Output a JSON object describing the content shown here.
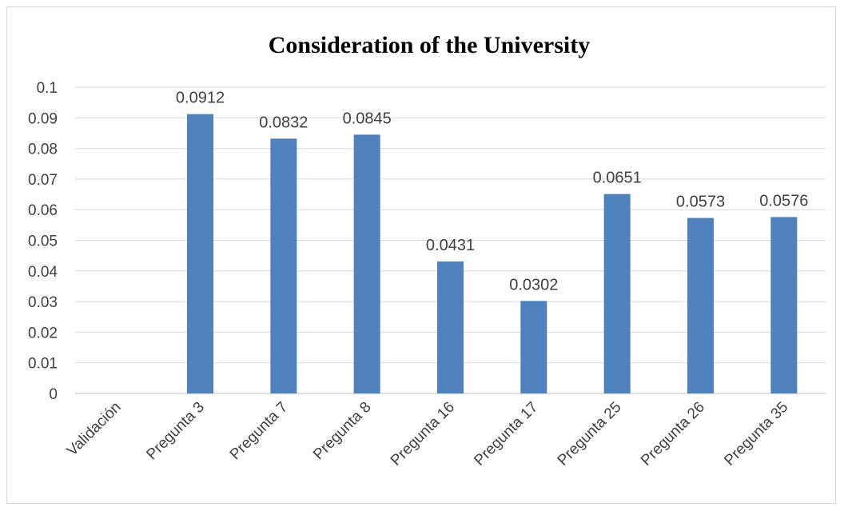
{
  "chart_data": {
    "type": "bar",
    "title": "Consideration of the University",
    "xlabel": "",
    "ylabel": "",
    "categories": [
      "Validación",
      "Pregunta 3",
      "Pregunta 7",
      "Pregunta 8",
      "Pregunta 16",
      "Pregunta 17",
      "Pregunta 25",
      "Pregunta 26",
      "Pregunta 35"
    ],
    "values": [
      0,
      0.0912,
      0.0832,
      0.0845,
      0.0431,
      0.0302,
      0.0651,
      0.0573,
      0.0576
    ],
    "data_labels": [
      "",
      "0.0912",
      "0.0832",
      "0.0845",
      "0.0431",
      "0.0302",
      "0.0651",
      "0.0573",
      "0.0576"
    ],
    "ylim": [
      0,
      0.1
    ],
    "yticks": [
      0,
      0.01,
      0.02,
      0.03,
      0.04,
      0.05,
      0.06,
      0.07,
      0.08,
      0.09,
      0.1
    ],
    "ytick_labels": [
      "0",
      "0.01",
      "0.02",
      "0.03",
      "0.04",
      "0.05",
      "0.06",
      "0.07",
      "0.08",
      "0.09",
      "0.1"
    ],
    "grid": true,
    "legend": "none",
    "bar_color": "#4f81bd"
  }
}
